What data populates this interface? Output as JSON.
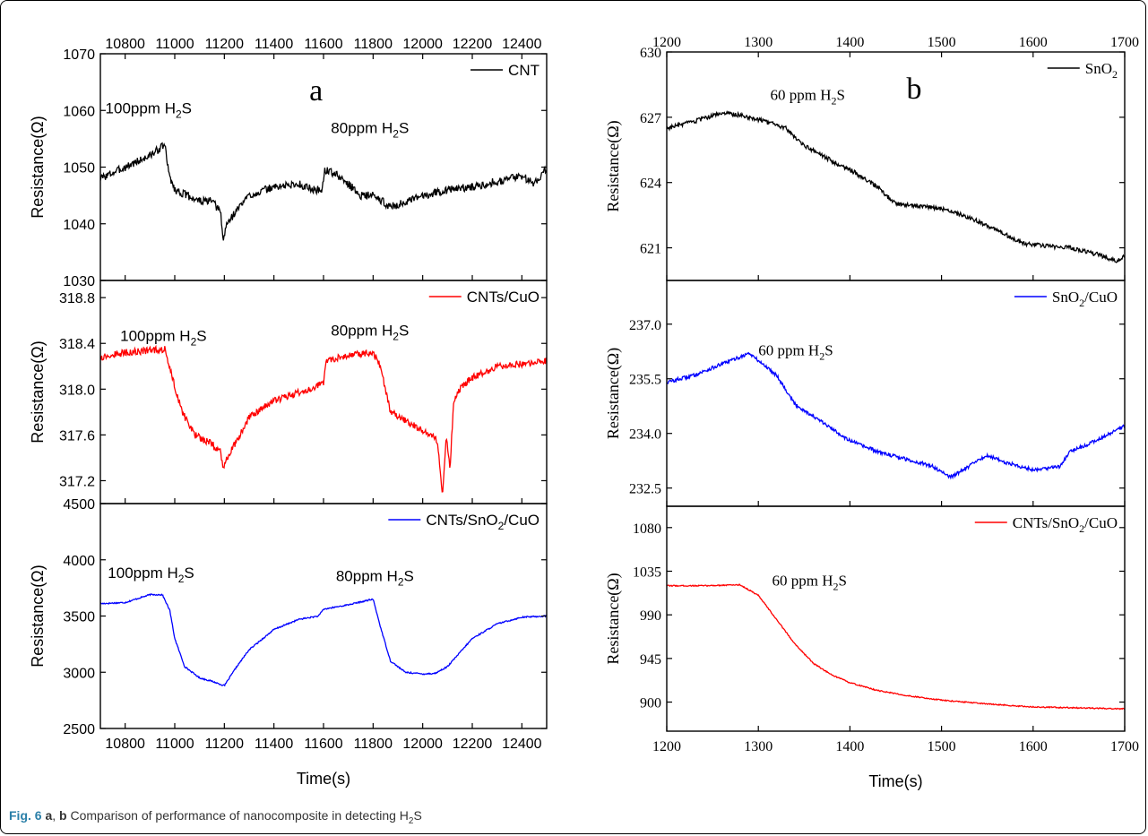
{
  "caption": {
    "fig_label": "Fig. 6",
    "panel_a": "a",
    "sep": ", ",
    "panel_b": "b",
    "text": " Comparison of performance of nanocomposite in detecting H",
    "sub": "2",
    "tail": "S"
  },
  "chart_data": [
    {
      "type": "line",
      "panel": "a",
      "font": "sans",
      "xlabel": "Time(s)",
      "xlim": [
        10700,
        12500
      ],
      "xticks": [
        10800,
        11000,
        11200,
        11400,
        11600,
        11800,
        12000,
        12200,
        12400
      ],
      "top_axis": true,
      "subplots": [
        {
          "ylabel": "Resistance(Ω)",
          "ylim": [
            1030,
            1070
          ],
          "yticks": [
            1030,
            1040,
            1050,
            1060,
            1070
          ],
          "panel_letter": "a",
          "legend": {
            "name": "CNT",
            "color": "#000000"
          },
          "annotations": [
            {
              "text": "100ppm H",
              "sub": "2",
              "tail": "S",
              "x": 10720,
              "y": 1059.5
            },
            {
              "text": "80ppm H",
              "sub": "2",
              "tail": "S",
              "x": 11630,
              "y": 1056
            }
          ],
          "series": {
            "color": "#000000",
            "noise": 0.7,
            "points": [
              [
                10700,
                1048
              ],
              [
                10800,
                1050
              ],
              [
                10900,
                1052
              ],
              [
                10960,
                1054
              ],
              [
                10975,
                1049
              ],
              [
                11000,
                1046
              ],
              [
                11050,
                1045
              ],
              [
                11100,
                1044
              ],
              [
                11150,
                1044
              ],
              [
                11185,
                1042
              ],
              [
                11195,
                1037
              ],
              [
                11210,
                1040
              ],
              [
                11260,
                1043
              ],
              [
                11300,
                1045
              ],
              [
                11400,
                1046.5
              ],
              [
                11500,
                1047
              ],
              [
                11560,
                1046
              ],
              [
                11595,
                1046
              ],
              [
                11605,
                1049.5
              ],
              [
                11640,
                1049
              ],
              [
                11700,
                1047
              ],
              [
                11750,
                1045
              ],
              [
                11800,
                1045
              ],
              [
                11870,
                1043
              ],
              [
                11950,
                1044
              ],
              [
                12000,
                1045
              ],
              [
                12100,
                1046
              ],
              [
                12200,
                1046.5
              ],
              [
                12300,
                1047.5
              ],
              [
                12400,
                1048.5
              ],
              [
                12450,
                1047
              ],
              [
                12500,
                1050
              ]
            ]
          }
        },
        {
          "ylabel": "Resistance(Ω)",
          "ylim": [
            317.0,
            318.95
          ],
          "yticks": [
            317.2,
            317.6,
            318.0,
            318.4,
            318.8
          ],
          "legend": {
            "name": "CNTs/CuO",
            "color": "#ff0000"
          },
          "annotations": [
            {
              "text": "100ppm H",
              "sub": "2",
              "tail": "S",
              "x": 10780,
              "y": 318.42
            },
            {
              "text": "80ppm H",
              "sub": "2",
              "tail": "S",
              "x": 11630,
              "y": 318.47
            }
          ],
          "series": {
            "color": "#ff0000",
            "noise": 0.03,
            "points": [
              [
                10700,
                318.28
              ],
              [
                10800,
                318.32
              ],
              [
                10960,
                318.35
              ],
              [
                10990,
                318.1
              ],
              [
                11030,
                317.8
              ],
              [
                11080,
                317.6
              ],
              [
                11150,
                317.52
              ],
              [
                11185,
                317.45
              ],
              [
                11195,
                317.3
              ],
              [
                11210,
                317.4
              ],
              [
                11250,
                317.55
              ],
              [
                11300,
                317.75
              ],
              [
                11400,
                317.9
              ],
              [
                11500,
                317.97
              ],
              [
                11600,
                318.05
              ],
              [
                11610,
                318.25
              ],
              [
                11700,
                318.3
              ],
              [
                11800,
                318.32
              ],
              [
                11830,
                318.2
              ],
              [
                11870,
                317.8
              ],
              [
                11950,
                317.7
              ],
              [
                12030,
                317.6
              ],
              [
                12060,
                317.55
              ],
              [
                12080,
                317.05
              ],
              [
                12095,
                317.6
              ],
              [
                12110,
                317.3
              ],
              [
                12125,
                317.9
              ],
              [
                12150,
                318.0
              ],
              [
                12200,
                318.1
              ],
              [
                12300,
                318.2
              ],
              [
                12400,
                318.22
              ],
              [
                12500,
                318.25
              ]
            ]
          }
        },
        {
          "ylabel": "Resistance(Ω)",
          "ylim": [
            2500,
            4500
          ],
          "yticks": [
            2500,
            3000,
            3500,
            4000,
            4500
          ],
          "legend": {
            "name": "CNTs/SnO",
            "sub": "2",
            "tail": "/CuO",
            "color": "#0000ff"
          },
          "annotations": [
            {
              "text": "100ppm H",
              "sub": "2",
              "tail": "S",
              "x": 10730,
              "y": 3840
            },
            {
              "text": "80ppm H",
              "sub": "2",
              "tail": "S",
              "x": 11650,
              "y": 3810
            }
          ],
          "series": {
            "color": "#0000ff",
            "noise": 6,
            "points": [
              [
                10700,
                3610
              ],
              [
                10800,
                3620
              ],
              [
                10900,
                3690
              ],
              [
                10950,
                3690
              ],
              [
                10980,
                3550
              ],
              [
                11000,
                3300
              ],
              [
                11040,
                3050
              ],
              [
                11100,
                2950
              ],
              [
                11150,
                2920
              ],
              [
                11200,
                2880
              ],
              [
                11250,
                3050
              ],
              [
                11300,
                3200
              ],
              [
                11400,
                3380
              ],
              [
                11500,
                3470
              ],
              [
                11580,
                3500
              ],
              [
                11600,
                3560
              ],
              [
                11700,
                3600
              ],
              [
                11800,
                3650
              ],
              [
                11830,
                3400
              ],
              [
                11870,
                3100
              ],
              [
                11930,
                3000
              ],
              [
                12000,
                2985
              ],
              [
                12050,
                2990
              ],
              [
                12100,
                3050
              ],
              [
                12200,
                3300
              ],
              [
                12300,
                3430
              ],
              [
                12400,
                3490
              ],
              [
                12500,
                3500
              ]
            ]
          }
        }
      ]
    },
    {
      "type": "line",
      "panel": "b",
      "font": "serif",
      "xlabel": "Time(s)",
      "xlim": [
        1200,
        1700
      ],
      "xticks": [
        1200,
        1300,
        1400,
        1500,
        1600,
        1700
      ],
      "top_axis": true,
      "subplots": [
        {
          "ylabel": "Resistance(Ω)",
          "ylim": [
            619.5,
            630
          ],
          "yticks": [
            621,
            624,
            627,
            630
          ],
          "panel_letter": "b",
          "legend": {
            "name": "SnO",
            "sub": "2",
            "tail": "",
            "color": "#000000"
          },
          "annotations": [
            {
              "text": "60 ppm H",
              "sub": "2",
              "tail": "S",
              "x": 1313,
              "y": 627.8
            }
          ],
          "series": {
            "color": "#000000",
            "noise": 0.1,
            "points": [
              [
                1200,
                626.5
              ],
              [
                1230,
                626.8
              ],
              [
                1260,
                627.2
              ],
              [
                1280,
                627.1
              ],
              [
                1300,
                626.9
              ],
              [
                1330,
                626.5
              ],
              [
                1350,
                625.7
              ],
              [
                1380,
                625.0
              ],
              [
                1400,
                624.6
              ],
              [
                1430,
                623.8
              ],
              [
                1450,
                623.0
              ],
              [
                1480,
                622.9
              ],
              [
                1500,
                622.8
              ],
              [
                1530,
                622.4
              ],
              [
                1560,
                621.8
              ],
              [
                1590,
                621.2
              ],
              [
                1610,
                621.1
              ],
              [
                1640,
                621.0
              ],
              [
                1670,
                620.7
              ],
              [
                1690,
                620.4
              ],
              [
                1700,
                620.6
              ]
            ]
          }
        },
        {
          "ylabel": "Resistance(Ω)",
          "ylim": [
            232,
            238.2
          ],
          "yticks": [
            232.5,
            234.0,
            235.5,
            237.0
          ],
          "legend": {
            "name": "SnO",
            "sub": "2",
            "tail": "/CuO",
            "color": "#0000ff"
          },
          "annotations": [
            {
              "text": "60 ppm H",
              "sub": "2",
              "tail": "S",
              "x": 1300,
              "y": 236.15
            }
          ],
          "series": {
            "color": "#0000ff",
            "noise": 0.05,
            "points": [
              [
                1200,
                235.4
              ],
              [
                1230,
                235.6
              ],
              [
                1260,
                235.9
              ],
              [
                1290,
                236.2
              ],
              [
                1300,
                236.0
              ],
              [
                1320,
                235.6
              ],
              [
                1340,
                234.8
              ],
              [
                1370,
                234.3
              ],
              [
                1400,
                233.8
              ],
              [
                1430,
                233.5
              ],
              [
                1460,
                233.3
              ],
              [
                1490,
                233.1
              ],
              [
                1510,
                232.8
              ],
              [
                1530,
                233.1
              ],
              [
                1550,
                233.4
              ],
              [
                1570,
                233.2
              ],
              [
                1600,
                233.0
              ],
              [
                1630,
                233.1
              ],
              [
                1640,
                233.5
              ],
              [
                1660,
                233.7
              ],
              [
                1700,
                234.2
              ]
            ]
          }
        },
        {
          "ylabel": "Resistance(Ω)",
          "ylim": [
            870,
            1102
          ],
          "yticks": [
            900,
            945,
            990,
            1035,
            1080
          ],
          "legend": {
            "name": "CNTs/SnO",
            "sub": "2",
            "tail": "/CuO",
            "color": "#ff0000"
          },
          "annotations": [
            {
              "text": "60 ppm H",
              "sub": "2",
              "tail": "S",
              "x": 1315,
              "y": 1020
            }
          ],
          "series": {
            "color": "#ff0000",
            "noise": 0.6,
            "points": [
              [
                1200,
                1020
              ],
              [
                1240,
                1020
              ],
              [
                1280,
                1021
              ],
              [
                1300,
                1010
              ],
              [
                1320,
                985
              ],
              [
                1340,
                960
              ],
              [
                1360,
                940
              ],
              [
                1380,
                928
              ],
              [
                1400,
                920
              ],
              [
                1430,
                912
              ],
              [
                1460,
                907
              ],
              [
                1500,
                902
              ],
              [
                1550,
                898
              ],
              [
                1600,
                895
              ],
              [
                1650,
                894
              ],
              [
                1700,
                893
              ]
            ]
          }
        }
      ]
    }
  ]
}
